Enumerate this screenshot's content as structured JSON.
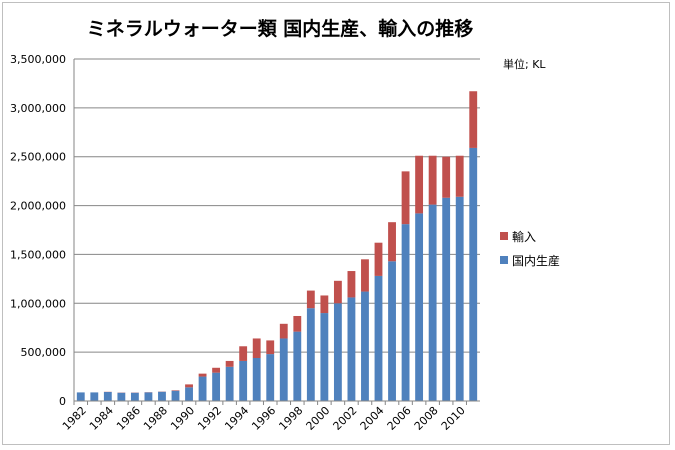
{
  "chart_data": {
    "type": "bar",
    "stacked": true,
    "title": "ミネラルウォーター類 国内生産、輸入の推移",
    "unit_label": "単位; KL",
    "categories": [
      "1982",
      "1983",
      "1984",
      "1985",
      "1986",
      "1987",
      "1988",
      "1989",
      "1990",
      "1991",
      "1992",
      "1993",
      "1994",
      "1995",
      "1996",
      "1997",
      "1998",
      "1999",
      "2000",
      "2001",
      "2002",
      "2003",
      "2004",
      "2005",
      "2006",
      "2007",
      "2008",
      "2009",
      "2010",
      "2011"
    ],
    "x_tick_labels": [
      "1982",
      "1984",
      "1986",
      "1988",
      "1990",
      "1992",
      "1994",
      "1996",
      "1998",
      "2000",
      "2002",
      "2004",
      "2006",
      "2008",
      "2010"
    ],
    "series": [
      {
        "name": "国内生産",
        "color": "#4f81bd",
        "values": [
          88000,
          88000,
          92000,
          85000,
          85000,
          88000,
          95000,
          105000,
          140000,
          250000,
          290000,
          350000,
          410000,
          440000,
          480000,
          640000,
          710000,
          950000,
          900000,
          1000000,
          1060000,
          1120000,
          1280000,
          1430000,
          1810000,
          1920000,
          2010000,
          2080000,
          2090000,
          2590000
        ]
      },
      {
        "name": "輸入",
        "color": "#c0504d",
        "values": [
          0,
          0,
          2000,
          2000,
          2000,
          2000,
          2000,
          5000,
          30000,
          30000,
          50000,
          60000,
          150000,
          200000,
          140000,
          150000,
          160000,
          180000,
          180000,
          230000,
          270000,
          330000,
          340000,
          400000,
          540000,
          590000,
          500000,
          420000,
          420000,
          580000
        ]
      }
    ],
    "ylim": [
      0,
      3500000
    ],
    "y_ticks": [
      0,
      500000,
      1000000,
      1500000,
      2000000,
      2500000,
      3000000,
      3500000
    ],
    "y_tick_labels": [
      "0",
      "500,000",
      "1,000,000",
      "1,500,000",
      "2,000,000",
      "2,500,000",
      "3,000,000",
      "3,500,000"
    ],
    "grid": true,
    "legend_position": "right"
  },
  "legend": [
    {
      "label": "輸入",
      "color": "#c0504d"
    },
    {
      "label": "国内生産",
      "color": "#4f81bd"
    }
  ]
}
